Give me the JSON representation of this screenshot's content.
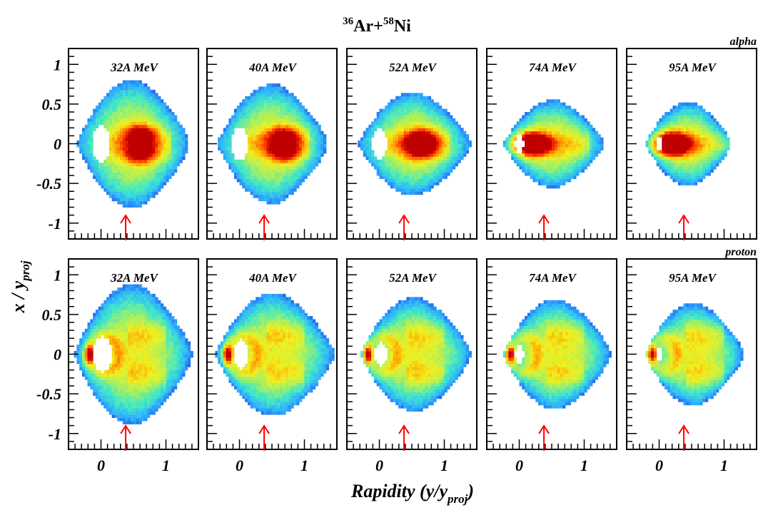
{
  "title": {
    "proj_mass": "36",
    "proj_element": "Ar+",
    "target_mass": "58",
    "target_element": "Ni"
  },
  "y_axis": {
    "label_main": "x / y",
    "label_sub": "proj"
  },
  "x_axis": {
    "label_main": "Rapidity (y/y",
    "label_sub": "proj",
    "label_close": ")"
  },
  "chart_data": {
    "type": "heatmap",
    "title": "36Ar+58Ni",
    "xlabel": "Rapidity (y/y_proj)",
    "ylabel": "x / y_proj",
    "xlim": [
      -0.5,
      1.5
    ],
    "ylim": [
      -1.2,
      1.2
    ],
    "x_ticks": [
      0,
      1
    ],
    "y_ticks": [
      -1,
      -0.5,
      0,
      0.5,
      1
    ],
    "x_tick_labels": [
      "0",
      "1"
    ],
    "y_tick_labels": [
      "-1",
      "-0.5",
      "0",
      "0.5",
      "1"
    ],
    "colorscale": [
      "#ffffff",
      "#1010a0",
      "#2050e0",
      "#30b0ff",
      "#40e8c8",
      "#a8f060",
      "#f0f020",
      "#ffa000",
      "#ff3000",
      "#c00000"
    ],
    "arrow_rapidity": 0.38,
    "arrow_color": "#ff0000",
    "rows": [
      {
        "particle": "alpha",
        "panels": [
          {
            "energy": "32A MeV",
            "x_range": [
              -0.38,
              1.35
            ],
            "width": 0.8,
            "y_peak": 0.62,
            "peak_offset": 0.12,
            "peak_level": 1.0,
            "hole": [
              0.0,
              0.12
            ]
          },
          {
            "energy": "40A MeV",
            "x_range": [
              -0.35,
              1.35
            ],
            "width": 0.75,
            "y_peak": 0.7,
            "peak_offset": 0.1,
            "peak_level": 0.95,
            "hole": [
              0.0,
              0.11
            ]
          },
          {
            "energy": "52A MeV",
            "x_range": [
              -0.33,
              1.4
            ],
            "width": 0.65,
            "y_peak": 0.65,
            "peak_offset": 0.07,
            "peak_level": 0.9,
            "hole": [
              0.0,
              0.1
            ]
          },
          {
            "energy": "74A MeV",
            "x_range": [
              -0.25,
              1.3
            ],
            "width": 0.55,
            "y_peak": 0.18,
            "peak_offset": 0.0,
            "peak_level": 1.0,
            "hole": [
              0.0,
              0.06
            ]
          },
          {
            "energy": "95A MeV",
            "x_range": [
              -0.22,
              1.1
            ],
            "width": 0.52,
            "y_peak": 0.18,
            "peak_offset": 0.0,
            "peak_level": 1.0,
            "hole": [
              0.0,
              0.05
            ]
          }
        ]
      },
      {
        "particle": "proton",
        "panels": [
          {
            "energy": "32A MeV",
            "x_range": [
              -0.42,
              1.4
            ],
            "width": 0.88,
            "y_peak": -0.18,
            "peak_offset": 0.0,
            "peak_level": 1.0,
            "hole": [
              0.02,
              0.12
            ]
          },
          {
            "energy": "40A MeV",
            "x_range": [
              -0.38,
              1.45
            ],
            "width": 0.78,
            "y_peak": -0.18,
            "peak_offset": 0.0,
            "peak_level": 1.0,
            "hole": [
              0.02,
              0.1
            ]
          },
          {
            "energy": "52A MeV",
            "x_range": [
              -0.3,
              1.4
            ],
            "width": 0.72,
            "y_peak": -0.18,
            "peak_offset": 0.0,
            "peak_level": 1.0,
            "hole": [
              0.02,
              0.08
            ]
          },
          {
            "energy": "74A MeV",
            "x_range": [
              -0.25,
              1.4
            ],
            "width": 0.7,
            "y_peak": -0.13,
            "peak_offset": 0.0,
            "peak_level": 1.0,
            "hole": [
              0.0,
              0.06
            ]
          },
          {
            "energy": "95A MeV",
            "x_range": [
              -0.22,
              1.3
            ],
            "width": 0.65,
            "y_peak": -0.1,
            "peak_offset": 0.0,
            "peak_level": 1.0,
            "hole": [
              0.0,
              0.05
            ]
          }
        ]
      }
    ]
  }
}
